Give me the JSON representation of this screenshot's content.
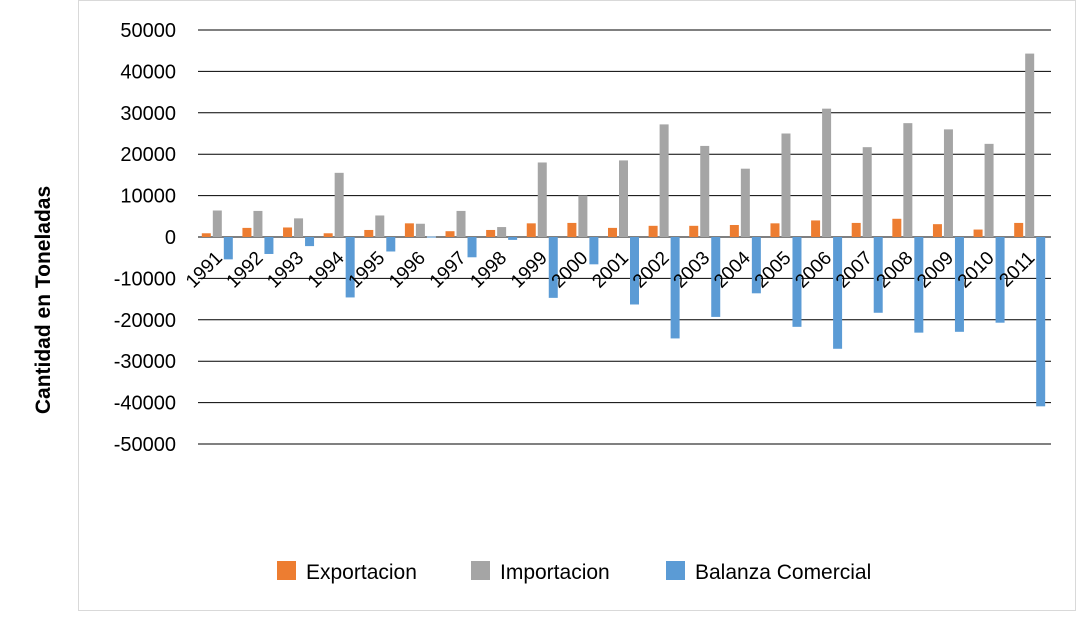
{
  "chart_data": {
    "type": "bar",
    "title": "",
    "xlabel": "",
    "ylabel": "Cantidad en Toneladas",
    "ylim": [
      -50000,
      50000
    ],
    "yticks": [
      50000,
      40000,
      30000,
      20000,
      10000,
      0,
      -10000,
      -20000,
      -30000,
      -40000,
      -50000
    ],
    "grid": true,
    "legend_position": "bottom",
    "categories": [
      "1991",
      "1992",
      "1993",
      "1994",
      "1995",
      "1996",
      "1997",
      "1998",
      "1999",
      "2000",
      "2001",
      "2002",
      "2003",
      "2004",
      "2005",
      "2006",
      "2007",
      "2008",
      "2009",
      "2010",
      "2011"
    ],
    "series": [
      {
        "name": "Exportacion",
        "color": "#ED7D31",
        "values": [
          900,
          2200,
          2300,
          900,
          1700,
          3300,
          1400,
          1700,
          3300,
          3400,
          2200,
          2700,
          2700,
          2900,
          3300,
          4000,
          3400,
          4400,
          3100,
          1800,
          3400
        ]
      },
      {
        "name": "Importacion",
        "color": "#A5A5A5",
        "values": [
          6400,
          6300,
          4500,
          15500,
          5200,
          3200,
          6300,
          2400,
          18000,
          10000,
          18500,
          27200,
          22000,
          16500,
          25000,
          31000,
          21700,
          27500,
          26000,
          22500,
          44300
        ]
      },
      {
        "name": "Balanza Comercial",
        "color": "#5B9BD5",
        "values": [
          -5400,
          -4100,
          -2200,
          -14600,
          -3500,
          100,
          -4900,
          -700,
          -14700,
          -6600,
          -16300,
          -24500,
          -19300,
          -13600,
          -21700,
          -27000,
          -18300,
          -23100,
          -22900,
          -20700,
          -40900
        ]
      }
    ]
  }
}
